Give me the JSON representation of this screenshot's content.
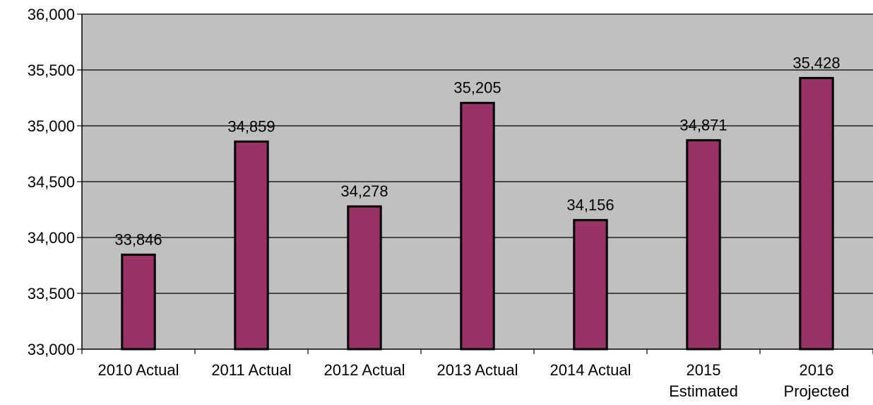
{
  "chart_data": {
    "type": "bar",
    "title": "",
    "xlabel": "",
    "ylabel": "",
    "ylim": [
      33000,
      36000
    ],
    "ytick_step": 500,
    "yticks": [
      "33,000",
      "33,500",
      "34,000",
      "34,500",
      "35,000",
      "35,500",
      "36,000"
    ],
    "categories": [
      [
        "2010 Actual"
      ],
      [
        "2011 Actual"
      ],
      [
        "2012 Actual"
      ],
      [
        "2013 Actual"
      ],
      [
        "2014 Actual"
      ],
      [
        "2015",
        "Estimated"
      ],
      [
        "2016",
        "Projected"
      ]
    ],
    "values": [
      33846,
      34859,
      34278,
      35205,
      34156,
      34871,
      35428
    ],
    "data_labels": [
      "33,846",
      "34,859",
      "34,278",
      "35,205",
      "34,156",
      "34,871",
      "35,428"
    ],
    "grid": true,
    "legend": "none"
  },
  "colors": {
    "bar_fill": "#993366",
    "bar_stroke": "#000000",
    "plot_background": "#c0c0c0",
    "gridline": "#000000"
  }
}
